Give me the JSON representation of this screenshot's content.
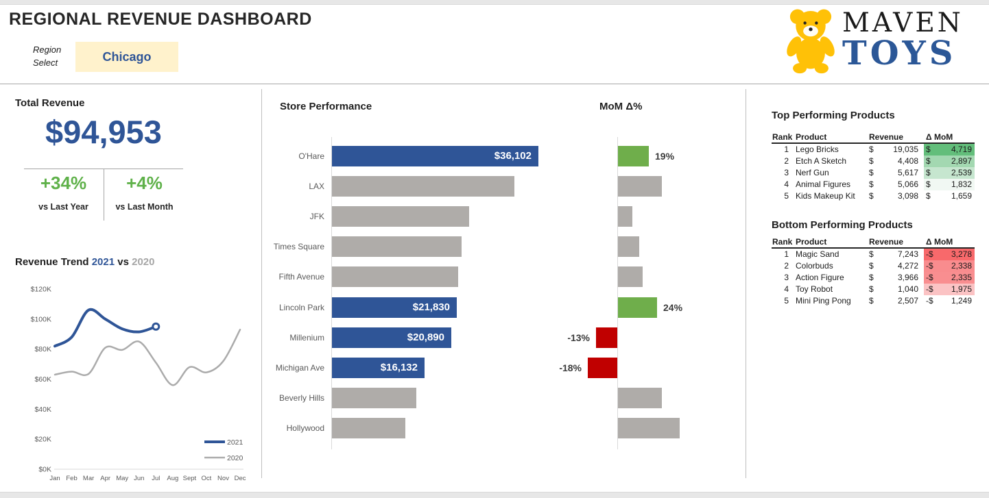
{
  "header": {
    "title": "REGIONAL REVENUE DASHBOARD",
    "region_label_line1": "Region",
    "region_label_line2": "Select",
    "region_value": "Chicago",
    "logo": {
      "brand_top": "MAVEN",
      "brand_bottom": "TOYS",
      "bear_icon": "teddy-bear-icon",
      "bear_color": "#FFC107",
      "brand_top_color": "#1A1A1A",
      "brand_bottom_color": "#2B5797"
    }
  },
  "kpi": {
    "title": "Total Revenue",
    "total": "$94,953",
    "vs_year_value": "+34%",
    "vs_year_label": "vs Last Year",
    "vs_month_value": "+4%",
    "vs_month_label": "vs Last Month"
  },
  "trend_title": {
    "prefix": "Revenue Trend ",
    "year_current": "2021",
    "mid": " vs ",
    "year_prior": "2020"
  },
  "sections": {
    "store_title": "Store Performance",
    "mom_title": "MoM Δ%"
  },
  "chart_data": [
    {
      "id": "revenue_trend",
      "type": "line",
      "title": "Revenue Trend 2021 vs 2020",
      "x": [
        "Jan",
        "Feb",
        "Mar",
        "Apr",
        "May",
        "Jun",
        "Jul",
        "Aug",
        "Sept",
        "Oct",
        "Nov",
        "Dec"
      ],
      "series": [
        {
          "name": "2021",
          "color": "#2F5597",
          "stroke_width": 4,
          "end_marker": true,
          "values": [
            82000,
            88000,
            106000,
            100000,
            93500,
            91500,
            95000
          ]
        },
        {
          "name": "2020",
          "color": "#ABABAB",
          "stroke_width": 2.5,
          "end_marker": false,
          "values": [
            63000,
            65000,
            63500,
            81000,
            79500,
            85000,
            71000,
            56000,
            68000,
            64500,
            72000,
            93000
          ]
        }
      ],
      "ylim": [
        0,
        120000
      ],
      "yticks": [
        {
          "v": 0,
          "label": "$0K"
        },
        {
          "v": 20000,
          "label": "$20K"
        },
        {
          "v": 40000,
          "label": "$40K"
        },
        {
          "v": 60000,
          "label": "$60K"
        },
        {
          "v": 80000,
          "label": "$80K"
        },
        {
          "v": 100000,
          "label": "$100K"
        },
        {
          "v": 120000,
          "label": "$120K"
        }
      ],
      "grid": false,
      "legend_position": "bottom-right"
    },
    {
      "id": "store_performance",
      "type": "bar",
      "orientation": "horizontal",
      "title": "Store Performance",
      "categories": [
        "O'Hare",
        "LAX",
        "JFK",
        "Times Square",
        "Fifth Avenue",
        "Lincoln Park",
        "Millenium",
        "Michigan Ave",
        "Beverly Hills",
        "Hollywood"
      ],
      "values": [
        36102,
        31900,
        24000,
        22700,
        22100,
        21830,
        20890,
        16132,
        14750,
        12850
      ],
      "data_labels": [
        "$36,102",
        "",
        "",
        "",
        "",
        "$21,830",
        "$20,890",
        "$16,132",
        "",
        ""
      ],
      "highlight": [
        true,
        false,
        false,
        false,
        false,
        true,
        true,
        true,
        false,
        false
      ],
      "xlim": [
        0,
        36102
      ],
      "highlight_color": "#2F5597",
      "base_color": "#AFACA9"
    },
    {
      "id": "mom_delta_pct",
      "type": "bar",
      "orientation": "horizontal",
      "title": "MoM Δ%",
      "categories": [
        "O'Hare",
        "LAX",
        "JFK",
        "Times Square",
        "Fifth Avenue",
        "Lincoln Park",
        "Millenium",
        "Michigan Ave",
        "Beverly Hills",
        "Hollywood"
      ],
      "values": [
        19,
        27,
        9,
        13,
        15,
        24,
        -13,
        -18,
        27,
        38
      ],
      "data_labels": [
        "19%",
        "",
        "",
        "",
        "",
        "24%",
        "-13%",
        "-18%",
        "",
        ""
      ],
      "highlight": [
        true,
        false,
        false,
        false,
        false,
        true,
        true,
        true,
        false,
        false
      ],
      "positive_color": "#6FAE4B",
      "negative_color": "#C00000",
      "base_color": "#AFACA9"
    }
  ],
  "tables": {
    "top": {
      "title": "Top Performing Products",
      "headers": [
        "Rank",
        "Product",
        "Revenue",
        "Δ MoM"
      ],
      "rows": [
        {
          "rank": "1",
          "product": "Lego Bricks",
          "cur": "$",
          "revenue": "19,035",
          "mom_cur": "$",
          "mom": "4,719",
          "mom_bg": "#63BE7B"
        },
        {
          "rank": "2",
          "product": "Etch A Sketch",
          "cur": "$",
          "revenue": "4,408",
          "mom_cur": "$",
          "mom": "2,897",
          "mom_bg": "#A3D8B1"
        },
        {
          "rank": "3",
          "product": "Nerf Gun",
          "cur": "$",
          "revenue": "5,617",
          "mom_cur": "$",
          "mom": "2,539",
          "mom_bg": "#C6E6CF"
        },
        {
          "rank": "4",
          "product": "Animal Figures",
          "cur": "$",
          "revenue": "5,066",
          "mom_cur": "$",
          "mom": "1,832",
          "mom_bg": "#F1F8F3"
        },
        {
          "rank": "5",
          "product": "Kids Makeup Kit",
          "cur": "$",
          "revenue": "3,098",
          "mom_cur": "$",
          "mom": "1,659",
          "mom_bg": "#FFFFFF"
        }
      ]
    },
    "bottom": {
      "title": "Bottom Performing Products",
      "headers": [
        "Rank",
        "Product",
        "Revenue",
        "Δ MoM"
      ],
      "rows": [
        {
          "rank": "1",
          "product": "Magic Sand",
          "cur": "$",
          "revenue": "7,243",
          "mom_cur": "-$",
          "mom": "3,278",
          "mom_bg": "#F8696B"
        },
        {
          "rank": "2",
          "product": "Colorbuds",
          "cur": "$",
          "revenue": "4,272",
          "mom_cur": "-$",
          "mom": "2,338",
          "mom_bg": "#F98C8E"
        },
        {
          "rank": "3",
          "product": "Action Figure",
          "cur": "$",
          "revenue": "3,966",
          "mom_cur": "-$",
          "mom": "2,335",
          "mom_bg": "#F98E90"
        },
        {
          "rank": "4",
          "product": "Toy Robot",
          "cur": "$",
          "revenue": "1,040",
          "mom_cur": "-$",
          "mom": "1,975",
          "mom_bg": "#FBC3C4"
        },
        {
          "rank": "5",
          "product": "Mini Ping Pong",
          "cur": "$",
          "revenue": "2,507",
          "mom_cur": "-$",
          "mom": "1,249",
          "mom_bg": "#FFFFFF"
        }
      ]
    }
  },
  "colors": {
    "accent_blue": "#2F5597",
    "kpi_green": "#5FB14A",
    "positive_green": "#6FAE4B",
    "negative_red": "#C00000",
    "bar_gray": "#AFACA9",
    "divider_gray": "#BFBFBF",
    "region_box_bg": "#FFF2CC",
    "axis_text": "#595959"
  }
}
